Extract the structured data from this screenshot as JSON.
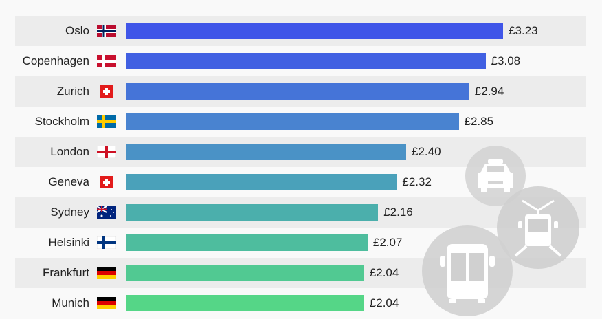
{
  "chart_data": {
    "type": "bar",
    "orientation": "horizontal",
    "categories": [
      "Oslo",
      "Copenhagen",
      "Zurich",
      "Stockholm",
      "London",
      "Geneva",
      "Sydney",
      "Helsinki",
      "Frankfurt",
      "Munich"
    ],
    "values": [
      3.23,
      3.08,
      2.94,
      2.85,
      2.4,
      2.32,
      2.16,
      2.07,
      2.04,
      2.04
    ],
    "labels": [
      "£3.23",
      "£3.08",
      "£2.94",
      "£2.85",
      "£2.40",
      "£2.32",
      "£2.16",
      "£2.07",
      "£2.04",
      "£2.04"
    ],
    "flags": [
      "norway",
      "denmark",
      "switzerland",
      "sweden",
      "england",
      "switzerland",
      "australia",
      "finland",
      "germany",
      "germany"
    ],
    "colors": [
      "#3f55e8",
      "#4160e2",
      "#4574d8",
      "#4983d0",
      "#4a92c6",
      "#4aa1ba",
      "#4bafac",
      "#4ebd9e",
      "#51c992",
      "#55d687"
    ],
    "grid": false,
    "legend": "none",
    "decorations": [
      "taxi-icon",
      "tram-icon",
      "bus-icon"
    ]
  }
}
